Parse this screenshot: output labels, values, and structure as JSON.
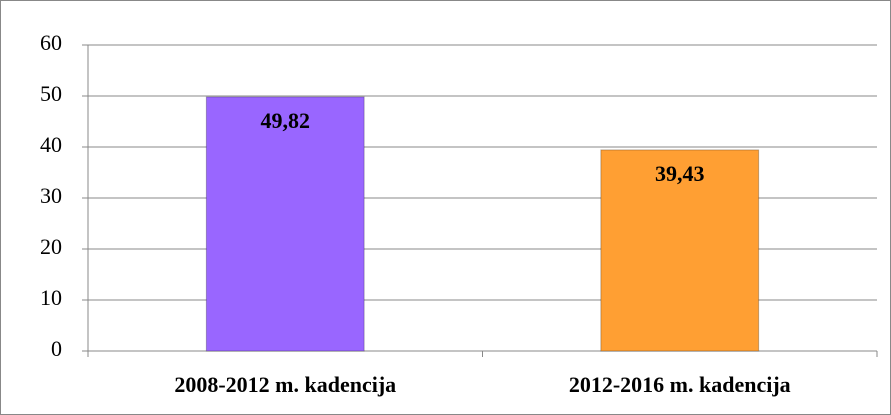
{
  "chart_data": {
    "type": "bar",
    "categories": [
      "2008-2012 m. kadencija",
      "2012-2016 m. kadencija"
    ],
    "values": [
      49.82,
      39.43
    ],
    "value_labels": [
      "49,82",
      "39,43"
    ],
    "colors": [
      "#9966ff",
      "#ff9f33"
    ],
    "ylim": [
      0,
      60
    ],
    "yticks": [
      0,
      10,
      20,
      30,
      40,
      50,
      60
    ],
    "grid": true
  }
}
